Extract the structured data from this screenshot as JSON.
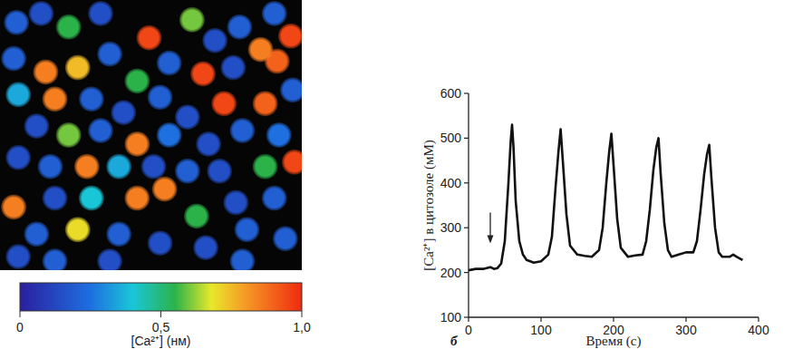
{
  "chart_data": [
    {
      "type": "scatter",
      "x": [
        18,
        45,
        75,
        110,
        163,
        210,
        235,
        262,
        300,
        318,
        303,
        285,
        15,
        50,
        85,
        120,
        150,
        185,
        222,
        255,
        20,
        60,
        100,
        135,
        175,
        205,
        245,
        290,
        320,
        40,
        75,
        110,
        150,
        185,
        228,
        265,
        305,
        20,
        55,
        95,
        130,
        168,
        205,
        240,
        290,
        322,
        15,
        60,
        100,
        150,
        180,
        215,
        258,
        300,
        40,
        85,
        130,
        175,
        225,
        270,
        312,
        20,
        60,
        120,
        265
      ],
      "y": [
        25,
        15,
        30,
        15,
        42,
        22,
        45,
        30,
        15,
        40,
        68,
        55,
        65,
        80,
        75,
        60,
        90,
        70,
        82,
        75,
        105,
        110,
        110,
        125,
        108,
        130,
        115,
        115,
        100,
        140,
        150,
        145,
        160,
        150,
        160,
        145,
        150,
        175,
        185,
        185,
        185,
        185,
        190,
        190,
        185,
        180,
        230,
        220,
        220,
        220,
        210,
        240,
        225,
        220,
        260,
        255,
        260,
        270,
        275,
        255,
        265,
        285,
        290,
        290,
        290
      ],
      "values": [
        0.2,
        0.15,
        0.55,
        0.15,
        0.95,
        0.6,
        0.15,
        0.2,
        0.2,
        0.95,
        0.9,
        0.85,
        0.2,
        0.85,
        0.75,
        0.2,
        0.55,
        0.2,
        0.95,
        0.15,
        0.35,
        0.85,
        0.2,
        0.15,
        0.2,
        0.15,
        0.95,
        0.9,
        0.2,
        0.15,
        0.6,
        0.2,
        0.85,
        0.25,
        0.15,
        0.2,
        0.25,
        0.15,
        0.2,
        0.85,
        0.35,
        0.15,
        0.2,
        0.15,
        0.55,
        0.95,
        0.85,
        0.15,
        0.4,
        0.85,
        0.85,
        0.55,
        0.15,
        0.2,
        0.2,
        0.7,
        0.2,
        0.15,
        0.15,
        0.2,
        0.2,
        0.15,
        0.2,
        0.15,
        0.2
      ],
      "xlim": [
        0,
        330
      ],
      "ylim": [
        300,
        0
      ],
      "tick_labels": false,
      "colorbar": {
        "label": "[Ca²⁺] (нм)",
        "range": [
          0,
          1
        ],
        "ticks": [
          0,
          {
            "value": 0.5,
            "label": "0,5"
          },
          {
            "value": 1,
            "label": "1,0"
          }
        ]
      }
    },
    {
      "type": "line",
      "panel_label": "б",
      "x_label": "Время (с)",
      "y_label": "[Ca²⁺] в цитозоле (мМ)",
      "x": [
        0,
        10,
        20,
        30,
        35,
        40,
        45,
        50,
        55,
        58,
        60,
        62,
        65,
        70,
        75,
        80,
        90,
        100,
        110,
        115,
        120,
        124,
        127,
        130,
        135,
        140,
        150,
        160,
        170,
        180,
        185,
        190,
        194,
        197,
        200,
        205,
        210,
        220,
        230,
        240,
        245,
        250,
        255,
        259,
        262,
        265,
        270,
        275,
        280,
        290,
        300,
        310,
        315,
        320,
        325,
        329,
        332,
        335,
        340,
        345,
        350,
        360,
        365,
        370,
        378
      ],
      "values": [
        205,
        208,
        208,
        212,
        208,
        210,
        220,
        270,
        400,
        490,
        530,
        480,
        360,
        270,
        240,
        228,
        222,
        225,
        240,
        280,
        390,
        470,
        520,
        450,
        330,
        260,
        240,
        237,
        235,
        250,
        300,
        400,
        470,
        510,
        440,
        320,
        255,
        235,
        238,
        240,
        270,
        340,
        430,
        480,
        500,
        420,
        310,
        250,
        235,
        240,
        245,
        245,
        270,
        340,
        420,
        465,
        485,
        410,
        300,
        245,
        235,
        235,
        240,
        235,
        228
      ],
      "color": "#111111",
      "xlim": [
        0,
        400
      ],
      "ylim": [
        100,
        600
      ],
      "xticks": [
        0,
        100,
        200,
        300,
        400
      ],
      "yticks": [
        100,
        200,
        300,
        400,
        500,
        600
      ],
      "arrow": {
        "x": 30,
        "y": 265
      }
    }
  ]
}
